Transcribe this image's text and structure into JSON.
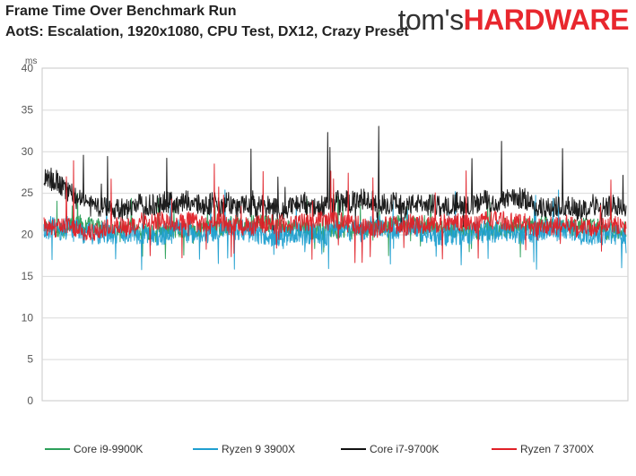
{
  "header": {
    "title_line1": "Frame Time Over Benchmark Run",
    "title_line2": "AotS: Escalation, 1920x1080, CPU Test, DX12, Crazy Preset",
    "logo_part1": "tom's",
    "logo_part2": "HARDWARE"
  },
  "chart_data": {
    "type": "line",
    "title": "Frame Time Over Benchmark Run",
    "subtitle": "AotS: Escalation, 1920x1080, CPU Test, DX12, Crazy Preset",
    "ylabel": "ms",
    "ylim": [
      0,
      40
    ],
    "yticks": [
      0,
      5,
      10,
      15,
      20,
      25,
      30,
      35,
      40
    ],
    "grid": true,
    "legend_position": "bottom",
    "series": [
      {
        "name": "Core i9-9900K",
        "color": "#2ca05a",
        "mean": 20.8,
        "spread": 1.0,
        "spike_max": 25.0,
        "spike_min": 17.0
      },
      {
        "name": "Ryzen 9 3900X",
        "color": "#1f9fd0",
        "mean": 20.3,
        "spread": 1.3,
        "spike_max": 25.5,
        "spike_min": 15.7
      },
      {
        "name": "Core i7-9700K",
        "color": "#111111",
        "mean": 23.6,
        "spread": 1.3,
        "spike_max": 33.2,
        "spike_min": 20.0,
        "start_level": 27.0
      },
      {
        "name": "Ryzen 7 3700X",
        "color": "#e02027",
        "mean": 21.2,
        "spread": 1.1,
        "spike_max": 29.0,
        "spike_min": 16.5
      }
    ]
  }
}
